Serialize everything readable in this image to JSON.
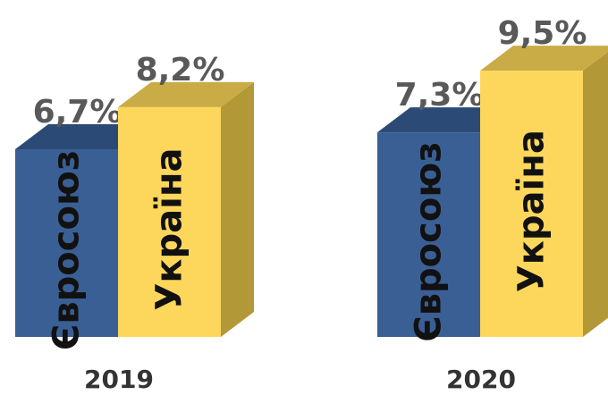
{
  "chart_data": {
    "type": "bar3d",
    "categories": [
      "2019",
      "2020"
    ],
    "series": [
      {
        "name": "Євросоюз",
        "color": "#3a5f95",
        "top_color": "#2c4a76",
        "side_color": "#243e63",
        "values": [
          6.7,
          7.3
        ],
        "value_labels": [
          "6,7%",
          "7,3%"
        ]
      },
      {
        "name": "Україна",
        "color": "#fdd75b",
        "top_color": "#c9ac45",
        "side_color": "#b39838",
        "values": [
          8.2,
          9.5
        ],
        "value_labels": [
          "8,2%",
          "9,5%"
        ]
      }
    ]
  }
}
